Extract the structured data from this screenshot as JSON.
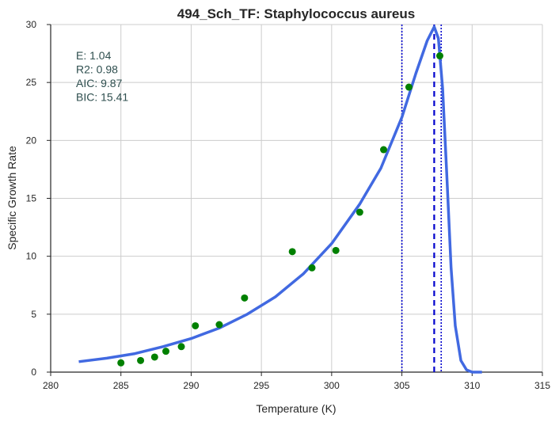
{
  "chart_data": {
    "type": "scatter",
    "title": "494_Sch_TF: Staphylococcus aureus",
    "xlabel": "Temperature (K)",
    "ylabel": "Specific Growth Rate",
    "xlim": [
      280,
      315
    ],
    "ylim": [
      0,
      30
    ],
    "x_ticks": [
      "280",
      "285",
      "290",
      "295",
      "300",
      "305",
      "310",
      "315"
    ],
    "y_ticks": [
      "0",
      "5",
      "10",
      "15",
      "20",
      "25",
      "30"
    ],
    "grid": true,
    "stats": [
      "E:  1.04",
      "R2:  0.98",
      "AIC: 9.87",
      "BIC: 15.41"
    ],
    "points": {
      "color": "#008000",
      "x": [
        285.0,
        286.4,
        287.4,
        288.2,
        289.3,
        290.3,
        292.0,
        293.8,
        297.2,
        298.6,
        300.3,
        302.0,
        303.7,
        305.5,
        307.7
      ],
      "y": [
        0.8,
        1.0,
        1.3,
        1.8,
        2.2,
        4.0,
        4.1,
        6.4,
        10.4,
        9.0,
        10.5,
        13.8,
        19.2,
        24.6,
        27.3
      ]
    },
    "fit_curve": {
      "color": "#4169E1",
      "x": [
        282.0,
        284.0,
        286.0,
        288.0,
        290.0,
        292.0,
        294.0,
        296.0,
        298.0,
        300.0,
        302.0,
        303.5,
        305.0,
        306.0,
        306.8,
        307.3,
        307.6,
        307.9,
        308.2,
        308.5,
        308.8,
        309.2,
        309.6,
        310.0,
        310.7
      ],
      "y": [
        0.9,
        1.2,
        1.6,
        2.2,
        2.9,
        3.8,
        5.0,
        6.5,
        8.5,
        11.1,
        14.5,
        17.6,
        22.0,
        25.8,
        28.6,
        29.8,
        28.8,
        24.5,
        17.0,
        9.0,
        4.0,
        1.0,
        0.2,
        0.0,
        0.0
      ]
    },
    "vlines": [
      {
        "x": 305.0,
        "style": "dotted",
        "color": "#0000CD"
      },
      {
        "x": 307.3,
        "style": "dashed",
        "color": "#0000CD"
      },
      {
        "x": 307.8,
        "style": "dotted",
        "color": "#0000CD"
      }
    ]
  }
}
